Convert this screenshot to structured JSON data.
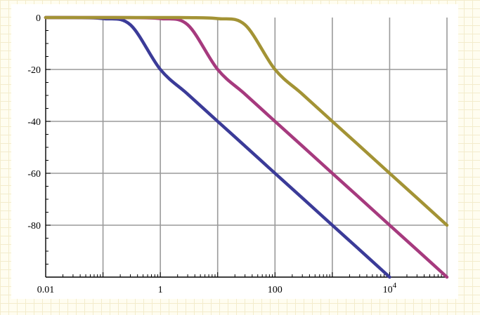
{
  "chart_data": {
    "type": "line",
    "title": "",
    "xlabel": "",
    "ylabel": "",
    "x_scale": "log",
    "xlim": [
      0.01,
      100000
    ],
    "ylim": [
      -100,
      0
    ],
    "grid": true,
    "x_ticks": [
      {
        "value": 0.01,
        "label": "0.01"
      },
      {
        "value": 1,
        "label": "1"
      },
      {
        "value": 100,
        "label": "100"
      },
      {
        "value": 10000,
        "label": "10",
        "sup": "4"
      }
    ],
    "y_ticks": [
      {
        "value": 0,
        "label": "0"
      },
      {
        "value": -20,
        "label": "-20"
      },
      {
        "value": -40,
        "label": "-40"
      },
      {
        "value": -60,
        "label": "-60"
      },
      {
        "value": -80,
        "label": "-80"
      }
    ],
    "x_gridlines": [
      0.1,
      1,
      10,
      100,
      1000,
      10000,
      100000
    ],
    "y_gridlines": [
      -20,
      -40,
      -60,
      -80
    ],
    "series": [
      {
        "color": "#3b3b98",
        "x": [
          0.01,
          0.03,
          0.1,
          0.3,
          1,
          3,
          10,
          30,
          100,
          300,
          1000,
          3000,
          10000
        ],
        "y": [
          0,
          -0.04,
          -0.4,
          -2.8,
          -20,
          -29.5,
          -40,
          -49.5,
          -60,
          -69.5,
          -80,
          -89.5,
          -100
        ]
      },
      {
        "color": "#a63a7e",
        "x": [
          0.01,
          0.1,
          0.3,
          1,
          3,
          10,
          30,
          100,
          300,
          1000,
          3000,
          10000,
          30000,
          100000
        ],
        "y": [
          0,
          0,
          -0.04,
          -0.4,
          -2.8,
          -20,
          -29.5,
          -40,
          -49.5,
          -60,
          -69.5,
          -80,
          -89.5,
          -100
        ]
      },
      {
        "color": "#a39335",
        "x": [
          0.01,
          1,
          3,
          10,
          30,
          100,
          300,
          1000,
          3000,
          10000,
          30000,
          100000
        ],
        "y": [
          0,
          0,
          -0.04,
          -0.4,
          -2.8,
          -20,
          -29.5,
          -40,
          -49.5,
          -60,
          -69.5,
          -80
        ]
      }
    ]
  }
}
